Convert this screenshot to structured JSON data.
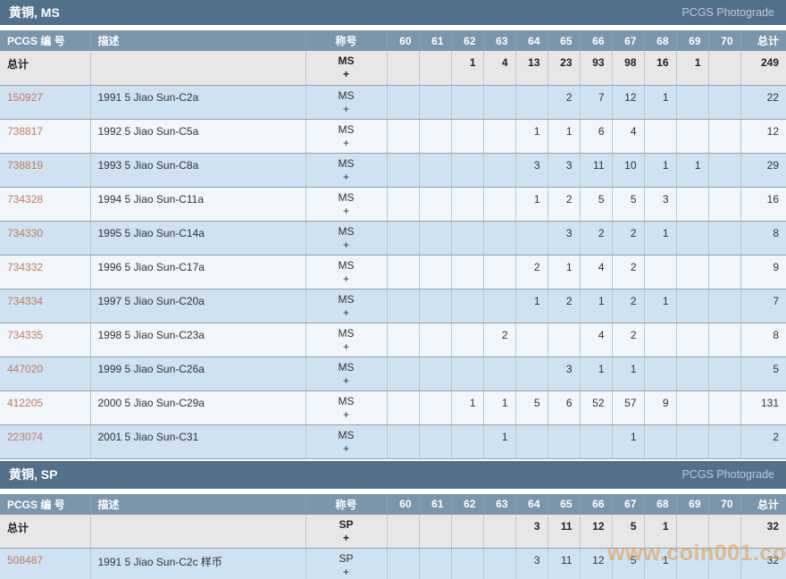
{
  "page": {
    "watermark_text": "www.coin001.com"
  },
  "palette": {
    "section_bar": "#52708a",
    "column_header_bg": "#7b95aa",
    "totals_row_bg": "#e7e7e7",
    "row_blue": "#cfe2f2",
    "row_light": "#f1f6fa",
    "link_color": "#bf7b5e",
    "watermark_color": "#ef9636"
  },
  "table_headers": {
    "pcgs_number": "PCGS 编 号",
    "description": "描述",
    "designation": "称号",
    "total": "总计"
  },
  "grade_labels": [
    "60",
    "61",
    "62",
    "63",
    "64",
    "65",
    "66",
    "67",
    "68",
    "69",
    "70"
  ],
  "sections": [
    {
      "title": "黄铜, MS",
      "photograde_label": "PCGS Photograde",
      "totals": {
        "label": "总计",
        "designation": "MS",
        "plus": "+",
        "values": [
          "",
          "",
          "1",
          "4",
          "13",
          "23",
          "93",
          "98",
          "16",
          "1",
          ""
        ],
        "total": "249"
      },
      "rows": [
        {
          "pcgs": "150927",
          "desc": "1991 5 Jiao Sun-C2a",
          "designation": "MS",
          "plus": "+",
          "values": [
            "",
            "",
            "",
            "",
            "",
            "2",
            "7",
            "12",
            "1",
            "",
            ""
          ],
          "total": "22"
        },
        {
          "pcgs": "738817",
          "desc": "1992 5 Jiao Sun-C5a",
          "designation": "MS",
          "plus": "+",
          "values": [
            "",
            "",
            "",
            "",
            "1",
            "1",
            "6",
            "4",
            "",
            "",
            ""
          ],
          "total": "12"
        },
        {
          "pcgs": "738819",
          "desc": "1993 5 Jiao Sun-C8a",
          "designation": "MS",
          "plus": "+",
          "values": [
            "",
            "",
            "",
            "",
            "3",
            "3",
            "11",
            "10",
            "1",
            "1",
            ""
          ],
          "total": "29"
        },
        {
          "pcgs": "734328",
          "desc": "1994 5 Jiao Sun-C11a",
          "designation": "MS",
          "plus": "+",
          "values": [
            "",
            "",
            "",
            "",
            "1",
            "2",
            "5",
            "5",
            "3",
            "",
            ""
          ],
          "total": "16"
        },
        {
          "pcgs": "734330",
          "desc": "1995 5 Jiao Sun-C14a",
          "designation": "MS",
          "plus": "+",
          "values": [
            "",
            "",
            "",
            "",
            "",
            "3",
            "2",
            "2",
            "1",
            "",
            ""
          ],
          "total": "8"
        },
        {
          "pcgs": "734332",
          "desc": "1996 5 Jiao Sun-C17a",
          "designation": "MS",
          "plus": "+",
          "values": [
            "",
            "",
            "",
            "",
            "2",
            "1",
            "4",
            "2",
            "",
            "",
            ""
          ],
          "total": "9"
        },
        {
          "pcgs": "734334",
          "desc": "1997 5 Jiao Sun-C20a",
          "designation": "MS",
          "plus": "+",
          "values": [
            "",
            "",
            "",
            "",
            "1",
            "2",
            "1",
            "2",
            "1",
            "",
            ""
          ],
          "total": "7"
        },
        {
          "pcgs": "734335",
          "desc": "1998 5 Jiao Sun-C23a",
          "designation": "MS",
          "plus": "+",
          "values": [
            "",
            "",
            "",
            "2",
            "",
            "",
            "4",
            "2",
            "",
            "",
            ""
          ],
          "total": "8"
        },
        {
          "pcgs": "447020",
          "desc": "1999 5 Jiao Sun-C26a",
          "designation": "MS",
          "plus": "+",
          "values": [
            "",
            "",
            "",
            "",
            "",
            "3",
            "1",
            "1",
            "",
            "",
            ""
          ],
          "total": "5"
        },
        {
          "pcgs": "412205",
          "desc": "2000 5 Jiao Sun-C29a",
          "designation": "MS",
          "plus": "+",
          "values": [
            "",
            "",
            "1",
            "1",
            "5",
            "6",
            "52",
            "57",
            "9",
            "",
            ""
          ],
          "total": "131"
        },
        {
          "pcgs": "223074",
          "desc": "2001 5 Jiao Sun-C31",
          "designation": "MS",
          "plus": "+",
          "values": [
            "",
            "",
            "",
            "1",
            "",
            "",
            "",
            "1",
            "",
            "",
            ""
          ],
          "total": "2"
        }
      ]
    },
    {
      "title": "黄铜, SP",
      "photograde_label": "PCGS Photograde",
      "totals": {
        "label": "总计",
        "designation": "SP",
        "plus": "+",
        "values": [
          "",
          "",
          "",
          "",
          "3",
          "11",
          "12",
          "5",
          "1",
          "",
          ""
        ],
        "total": "32"
      },
      "rows": [
        {
          "pcgs": "508487",
          "desc": "1991 5 Jiao Sun-C2c 样币",
          "designation": "SP",
          "plus": "+",
          "values": [
            "",
            "",
            "",
            "",
            "3",
            "11",
            "12",
            "5",
            "1",
            "",
            ""
          ],
          "total": "32"
        }
      ]
    }
  ]
}
